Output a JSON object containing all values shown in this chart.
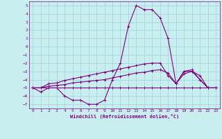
{
  "title": "",
  "xlabel": "Windchill (Refroidissement éolien,°C)",
  "background_color": "#c8eef0",
  "grid_color": "#b0d8dc",
  "line_color": "#800080",
  "x": [
    0,
    1,
    2,
    3,
    4,
    5,
    6,
    7,
    8,
    9,
    10,
    11,
    12,
    13,
    14,
    15,
    16,
    17,
    18,
    19,
    20,
    21,
    22,
    23
  ],
  "series1": [
    -5,
    -5.5,
    -5,
    -5,
    -6,
    -6.5,
    -6.5,
    -7,
    -7,
    -6.5,
    -4,
    -2,
    2.5,
    5,
    4.5,
    4.5,
    3.5,
    1,
    -4.5,
    -3,
    -3,
    -4,
    -5,
    -5
  ],
  "series2": [
    -5,
    -5,
    -5,
    -5,
    -5,
    -5,
    -5,
    -5,
    -5,
    -5,
    -5,
    -5,
    -5,
    -5,
    -5,
    -5,
    -5,
    -5,
    -5,
    -5,
    -5,
    -5,
    -5,
    -5
  ],
  "series3": [
    -5,
    -5,
    -4.8,
    -4.7,
    -4.6,
    -4.4,
    -4.3,
    -4.2,
    -4.1,
    -4.0,
    -3.8,
    -3.6,
    -3.4,
    -3.2,
    -3.1,
    -2.9,
    -2.8,
    -3.2,
    -4.5,
    -3.3,
    -3.0,
    -3.5,
    -5,
    -5
  ],
  "series4": [
    -5,
    -5,
    -4.5,
    -4.4,
    -4.1,
    -3.9,
    -3.7,
    -3.5,
    -3.3,
    -3.1,
    -2.9,
    -2.7,
    -2.5,
    -2.3,
    -2.1,
    -2.0,
    -2.0,
    -3.5,
    -4.5,
    -3.0,
    -2.8,
    -4,
    -5,
    -5
  ],
  "ylim": [
    -7.5,
    5.5
  ],
  "xlim": [
    -0.5,
    23.5
  ],
  "yticks": [
    5,
    4,
    3,
    2,
    1,
    0,
    -1,
    -2,
    -3,
    -4,
    -5,
    -6,
    -7
  ],
  "xticks": [
    0,
    1,
    2,
    3,
    4,
    5,
    6,
    7,
    8,
    9,
    10,
    11,
    12,
    13,
    14,
    15,
    16,
    17,
    18,
    19,
    20,
    21,
    22,
    23
  ],
  "markersize": 3,
  "linewidth": 0.8
}
